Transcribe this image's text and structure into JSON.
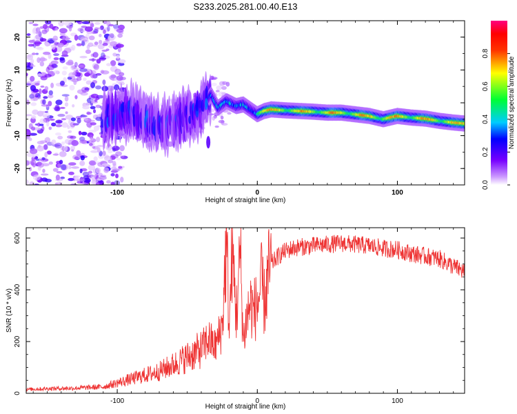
{
  "title": "S233.2025.281.00.40.E13",
  "chart_data": [
    {
      "type": "heatmap",
      "xlabel": "Height of straight line (km)",
      "ylabel": "Frequency (Hz)",
      "xlim": [
        -165,
        148
      ],
      "ylim": [
        -25,
        25
      ],
      "x_ticks": [
        -100,
        0,
        100
      ],
      "x_tick_labels": [
        "-100",
        "0",
        "100"
      ],
      "y_ticks": [
        -20,
        -10,
        0,
        10,
        20
      ],
      "y_tick_labels": [
        "-20",
        "-10",
        "0",
        "10",
        "20"
      ],
      "ridge": {
        "x": [
          -110,
          -100,
          -90,
          -80,
          -70,
          -60,
          -50,
          -40,
          -33,
          -28,
          -22,
          -15,
          -10,
          -5,
          0,
          5,
          10,
          20,
          30,
          40,
          50,
          60,
          70,
          80,
          90,
          100,
          110,
          120,
          130,
          140,
          148
        ],
        "freq": [
          -5,
          -3.5,
          -3,
          -5.5,
          -7,
          -6,
          -4.5,
          -2,
          2.5,
          -1.5,
          0.5,
          -1,
          -0.5,
          -2,
          -3.5,
          -2.5,
          -2,
          -2.3,
          -2.5,
          -2.7,
          -3,
          -3,
          -3.5,
          -4,
          -5,
          -4,
          -4.5,
          -4.8,
          -5.5,
          -6,
          -6.3
        ]
      },
      "colorbar": {
        "label": "Normalized spectral amplitude",
        "range": [
          0,
          1
        ],
        "ticks": [
          0.0,
          0.2,
          0.4,
          0.6,
          0.8
        ],
        "tick_labels": [
          "0.0",
          "0.2",
          "0.4",
          "0.6",
          "0.8"
        ],
        "colormap": "rainbow (white-violet-blue-cyan-green-yellow-red-magenta)"
      }
    },
    {
      "type": "line",
      "xlabel": "Height of straight line (km)",
      "ylabel": "SNR (10 * v/v)",
      "xlim": [
        -165,
        148
      ],
      "ylim": [
        0,
        640
      ],
      "x_ticks": [
        -100,
        0,
        100
      ],
      "x_tick_labels": [
        "-100",
        "0",
        "100"
      ],
      "y_ticks": [
        0,
        200,
        400,
        600
      ],
      "y_tick_labels": [
        "0",
        "200",
        "400",
        "600"
      ],
      "color": "#ee3333",
      "series": [
        {
          "name": "SNR",
          "x": [
            -165,
            -150,
            -130,
            -110,
            -100,
            -90,
            -80,
            -70,
            -60,
            -50,
            -40,
            -35,
            -30,
            -25,
            -22,
            -20,
            -18,
            -15,
            -12,
            -10,
            -8,
            -5,
            -3,
            0,
            3,
            5,
            8,
            10,
            15,
            20,
            25,
            30,
            40,
            50,
            60,
            70,
            80,
            90,
            100,
            110,
            120,
            130,
            140,
            148
          ],
          "values": [
            15,
            18,
            20,
            25,
            40,
            55,
            70,
            85,
            110,
            140,
            170,
            210,
            180,
            260,
            600,
            240,
            560,
            300,
            540,
            200,
            280,
            350,
            320,
            340,
            420,
            350,
            460,
            500,
            530,
            550,
            560,
            565,
            570,
            575,
            580,
            575,
            570,
            560,
            555,
            540,
            530,
            520,
            490,
            470
          ]
        }
      ]
    }
  ]
}
